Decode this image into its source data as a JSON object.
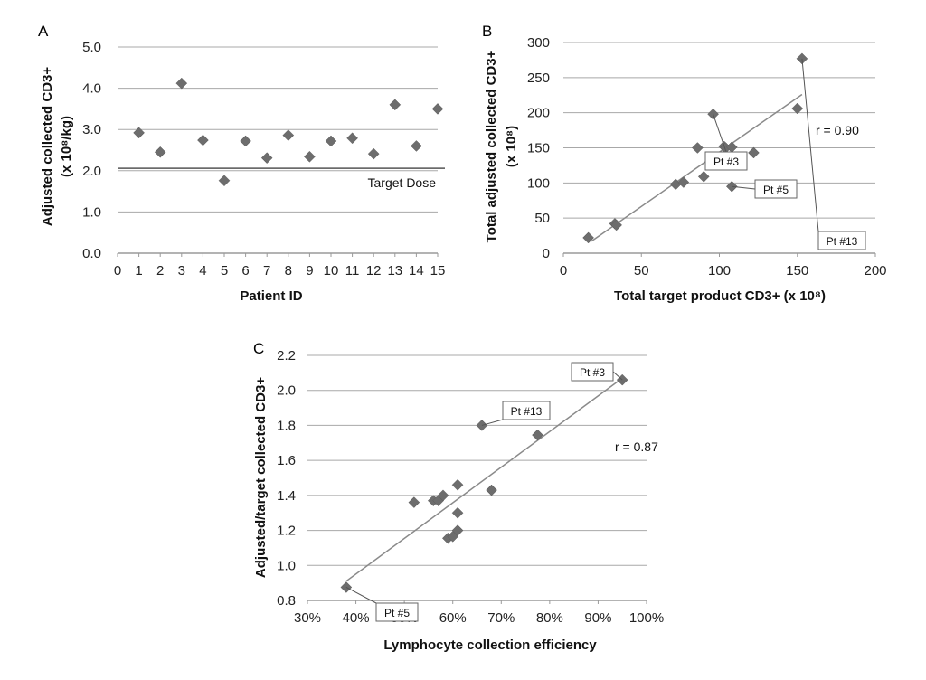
{
  "chart_data": [
    {
      "panel": "A",
      "type": "scatter",
      "title": "",
      "xlabel": "Patient ID",
      "ylabel": "Adjusted collected CD3+",
      "ylabel_unit": "(x 10⁸/kg)",
      "xlim": [
        0,
        15
      ],
      "ylim": [
        0,
        5
      ],
      "xticks": [
        "0",
        "1",
        "2",
        "3",
        "4",
        "5",
        "6",
        "7",
        "8",
        "9",
        "10",
        "11",
        "12",
        "13",
        "14",
        "15"
      ],
      "yticks": [
        "0.0",
        "1.0",
        "2.0",
        "3.0",
        "4.0",
        "5.0"
      ],
      "grid": "horizontal",
      "points": [
        {
          "x": 1,
          "y": 2.92
        },
        {
          "x": 2,
          "y": 2.45
        },
        {
          "x": 3,
          "y": 4.12
        },
        {
          "x": 4,
          "y": 2.74
        },
        {
          "x": 5,
          "y": 1.76
        },
        {
          "x": 6,
          "y": 2.72
        },
        {
          "x": 7,
          "y": 2.31
        },
        {
          "x": 8,
          "y": 2.86
        },
        {
          "x": 9,
          "y": 2.34
        },
        {
          "x": 10,
          "y": 2.72
        },
        {
          "x": 11,
          "y": 2.79
        },
        {
          "x": 12,
          "y": 2.41
        },
        {
          "x": 13,
          "y": 3.6
        },
        {
          "x": 14,
          "y": 2.6
        },
        {
          "x": 15,
          "y": 3.5
        }
      ],
      "reference_line": {
        "y": 2.06,
        "label": "Target Dose"
      }
    },
    {
      "panel": "B",
      "type": "scatter",
      "title": "",
      "xlabel": "Total target product CD3+ (x 10⁸)",
      "ylabel": "Total adjusted collected  CD3+",
      "ylabel_unit": "(x 10⁸)",
      "xlim": [
        0,
        200
      ],
      "ylim": [
        0,
        300
      ],
      "xticks": [
        "0",
        "50",
        "100",
        "150",
        "200"
      ],
      "yticks": [
        "0",
        "50",
        "100",
        "150",
        "200",
        "250",
        "300"
      ],
      "grid": "horizontal",
      "points": [
        {
          "x": 16,
          "y": 22
        },
        {
          "x": 33,
          "y": 42
        },
        {
          "x": 34,
          "y": 40
        },
        {
          "x": 72,
          "y": 98
        },
        {
          "x": 77,
          "y": 101
        },
        {
          "x": 86,
          "y": 150
        },
        {
          "x": 90,
          "y": 109
        },
        {
          "x": 96,
          "y": 198
        },
        {
          "x": 103,
          "y": 152
        },
        {
          "x": 104,
          "y": 150
        },
        {
          "x": 108,
          "y": 95
        },
        {
          "x": 108,
          "y": 151
        },
        {
          "x": 122,
          "y": 143
        },
        {
          "x": 150,
          "y": 206
        },
        {
          "x": 153,
          "y": 277
        }
      ],
      "trendline": {
        "x": [
          18,
          153
        ],
        "y": [
          17,
          226
        ]
      },
      "annotation": "r = 0.90",
      "callouts": [
        {
          "label": "Pt #3",
          "x": 96,
          "y": 198
        },
        {
          "label": "Pt #13",
          "x": 153,
          "y": 277
        },
        {
          "label": "Pt #5",
          "x": 108,
          "y": 95
        }
      ]
    },
    {
      "panel": "C",
      "type": "scatter",
      "title": "",
      "xlabel": "Lymphocyte collection efficiency",
      "ylabel": "Adjusted/target collected CD3+",
      "xlim": [
        0.3,
        1.0
      ],
      "ylim": [
        0.8,
        2.2
      ],
      "xticks": [
        "30%",
        "40%",
        "50%",
        "60%",
        "70%",
        "80%",
        "90%",
        "100%"
      ],
      "yticks": [
        "0.8",
        "1.0",
        "1.2",
        "1.4",
        "1.6",
        "1.8",
        "2.0",
        "2.2"
      ],
      "grid": "horizontal",
      "points": [
        {
          "x": 0.38,
          "y": 0.875
        },
        {
          "x": 0.52,
          "y": 1.36
        },
        {
          "x": 0.56,
          "y": 1.37
        },
        {
          "x": 0.57,
          "y": 1.37
        },
        {
          "x": 0.58,
          "y": 1.4
        },
        {
          "x": 0.59,
          "y": 1.155
        },
        {
          "x": 0.6,
          "y": 1.165
        },
        {
          "x": 0.61,
          "y": 1.2
        },
        {
          "x": 0.61,
          "y": 1.46
        },
        {
          "x": 0.61,
          "y": 1.3
        },
        {
          "x": 0.66,
          "y": 1.8
        },
        {
          "x": 0.68,
          "y": 1.43
        },
        {
          "x": 0.775,
          "y": 1.745
        },
        {
          "x": 0.95,
          "y": 2.06
        }
      ],
      "trendline": {
        "x": [
          0.38,
          0.95
        ],
        "y": [
          0.91,
          2.07
        ]
      },
      "annotation": "r = 0.87",
      "callouts": [
        {
          "label": "Pt #3",
          "x": 0.95,
          "y": 2.06
        },
        {
          "label": "Pt #13",
          "x": 0.66,
          "y": 1.8
        },
        {
          "label": "Pt #5",
          "x": 0.38,
          "y": 0.875
        }
      ]
    }
  ]
}
